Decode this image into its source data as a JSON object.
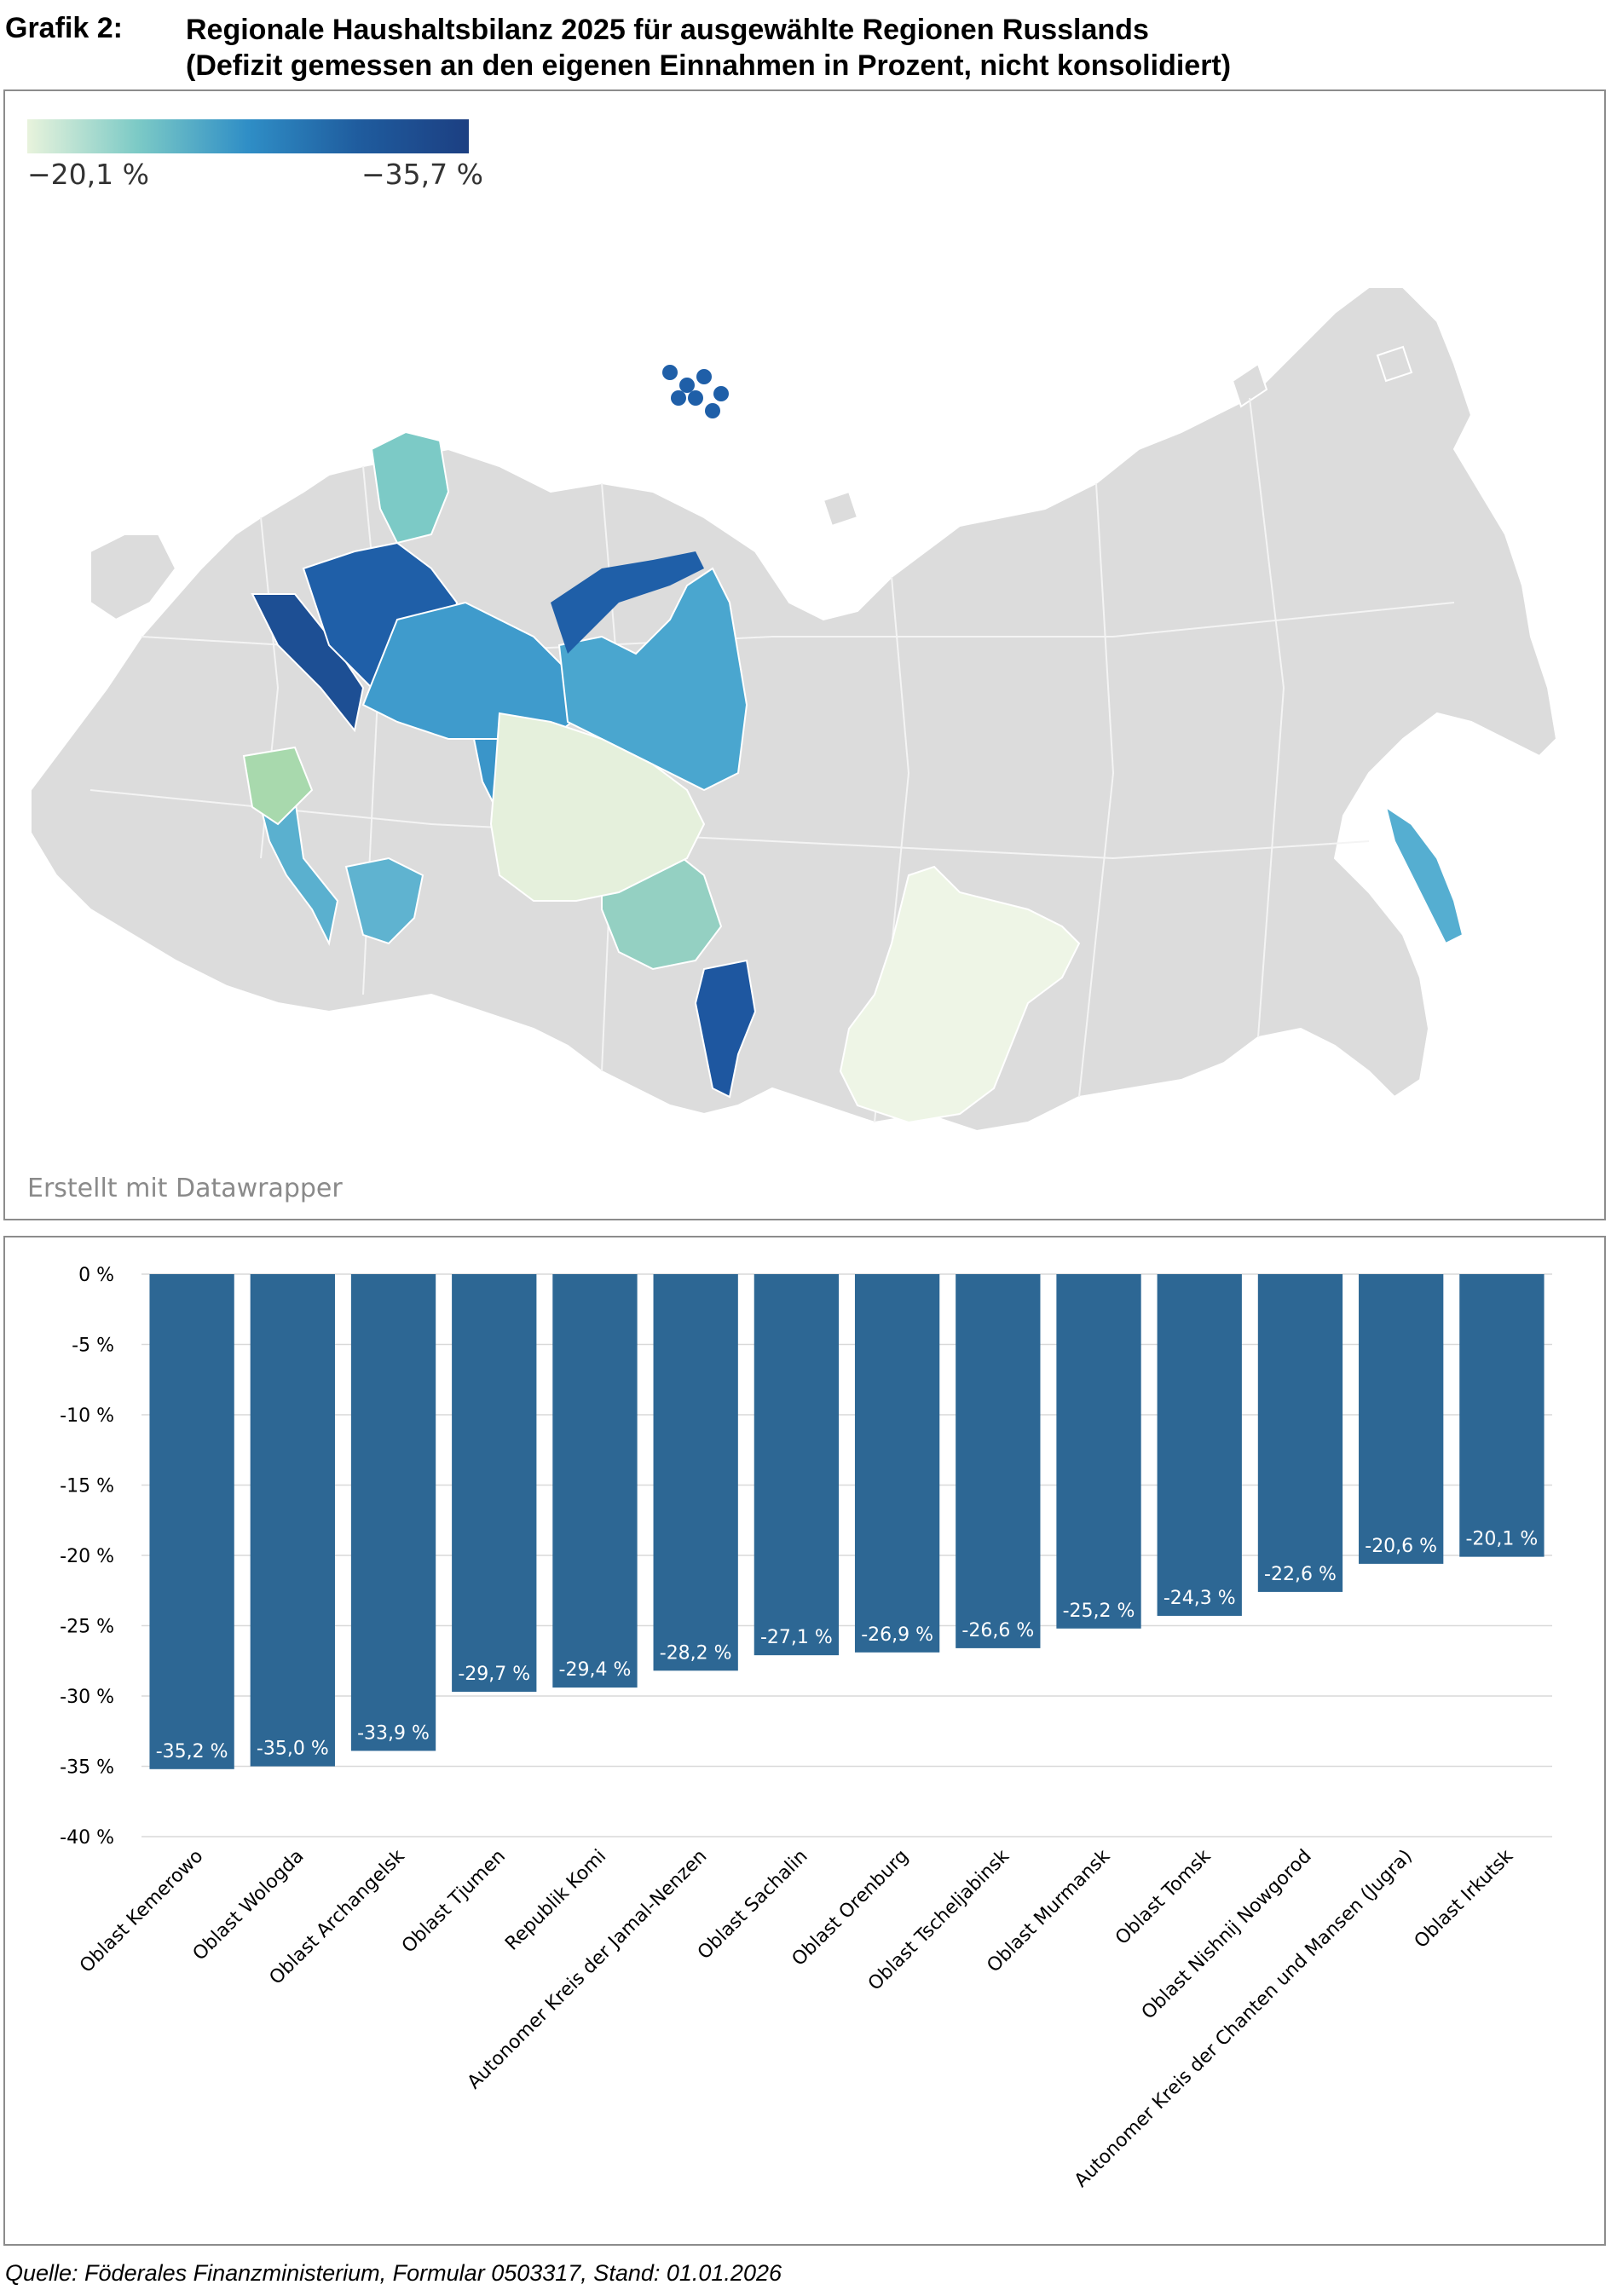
{
  "header": {
    "label": "Grafik 2:",
    "title_line1": "Regionale Haushaltsbilanz 2025 für ausgewählte Regionen Russlands",
    "title_line2": "(Defizit gemessen an den eigenen Einnahmen in Prozent, nicht konsolidiert)"
  },
  "map": {
    "legend_min": "−20,1 %",
    "legend_max": "−35,7 %",
    "legend_colors": [
      "#e8f3dc",
      "#7ccac6",
      "#2f8ec6",
      "#1f5c9e",
      "#1c3f82"
    ],
    "credit": "Erstellt mit Datawrapper",
    "base_color": "#dcdcdc",
    "regions": [
      {
        "name": "Oblast Kemerowo",
        "color": "#1e57a0"
      },
      {
        "name": "Oblast Wologda",
        "color": "#1d4f94"
      },
      {
        "name": "Oblast Archangelsk",
        "color": "#1f5fa8"
      },
      {
        "name": "Oblast Tjumen",
        "color": "#3a95c9"
      },
      {
        "name": "Republik Komi",
        "color": "#3f9bcc"
      },
      {
        "name": "Autonomer Kreis der Jamal-Nenzen",
        "color": "#4aa6cf"
      },
      {
        "name": "Oblast Sachalin",
        "color": "#55aed1"
      },
      {
        "name": "Oblast Orenburg",
        "color": "#5ab0cf"
      },
      {
        "name": "Oblast Tscheljabinsk",
        "color": "#5fb3d0"
      },
      {
        "name": "Oblast Murmansk",
        "color": "#7ccac6"
      },
      {
        "name": "Oblast Tomsk",
        "color": "#94d0c2"
      },
      {
        "name": "Oblast Nishnij Nowgorod",
        "color": "#a8d9ad"
      },
      {
        "name": "Autonomer Kreis der Chanten und Mansen (Jugra)",
        "color": "#e5f0dc"
      },
      {
        "name": "Oblast Irkutsk",
        "color": "#eef5e6"
      }
    ]
  },
  "chart_data": {
    "type": "bar",
    "categories": [
      "Oblast Kemerowo",
      "Oblast Wologda",
      "Oblast Archangelsk",
      "Oblast Tjumen",
      "Republik Komi",
      "Autonomer Kreis der Jamal-Nenzen",
      "Oblast Sachalin",
      "Oblast Orenburg",
      "Oblast Tscheljabinsk",
      "Oblast Murmansk",
      "Oblast Tomsk",
      "Oblast Nishnij Nowgorod",
      "Autonomer Kreis der Chanten und Mansen (Jugra)",
      "Oblast Irkutsk"
    ],
    "values": [
      -35.2,
      -35.0,
      -33.9,
      -29.7,
      -29.4,
      -28.2,
      -27.1,
      -26.9,
      -26.6,
      -25.2,
      -24.3,
      -22.6,
      -20.6,
      -20.1
    ],
    "value_labels": [
      "-35,2 %",
      "-35,0 %",
      "-33,9 %",
      "-29,7 %",
      "-29,4 %",
      "-28,2 %",
      "-27,1 %",
      "-26,9 %",
      "-26,6 %",
      "-25,2 %",
      "-24,3 %",
      "-22,6 %",
      "-20,6 %",
      "-20,1 %"
    ],
    "yticks": [
      0,
      -5,
      -10,
      -15,
      -20,
      -25,
      -30,
      -35,
      -40
    ],
    "ytick_labels": [
      "0 %",
      "-5 %",
      "-10 %",
      "-15 %",
      "-20 %",
      "-25 %",
      "-30 %",
      "-35 %",
      "-40 %"
    ],
    "ylim": [
      -40,
      0
    ],
    "bar_color": "#2d6794",
    "grid": true
  },
  "source": "Quelle: Föderales Finanzministerium, Formular 0503317, Stand: 01.01.2026"
}
